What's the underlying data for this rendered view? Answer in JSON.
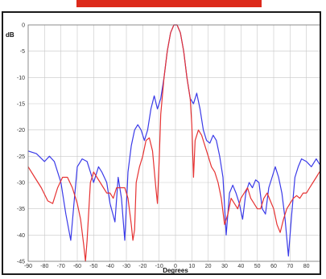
{
  "chart_data": {
    "type": "line",
    "title": "",
    "xlabel": "Degrees",
    "ylabel": "dB",
    "xlim": [
      -90,
      90
    ],
    "ylim": [
      -45,
      0
    ],
    "xticks": [
      -90,
      -80,
      -70,
      -60,
      -50,
      -40,
      -30,
      -20,
      -10,
      0,
      10,
      20,
      30,
      40,
      50,
      60,
      70,
      80,
      90
    ],
    "yticks": [
      0,
      -5,
      -10,
      -15,
      -20,
      -25,
      -30,
      -35,
      -40,
      -45
    ],
    "grid": true,
    "legend": "none",
    "series": [
      {
        "color": "#3a3ae8",
        "x": [
          -90,
          -85,
          -80,
          -77,
          -74,
          -70,
          -67,
          -64,
          -62,
          -60,
          -57,
          -54,
          -52,
          -50,
          -47,
          -45,
          -42,
          -40,
          -37,
          -35,
          -33,
          -31,
          -29,
          -27,
          -25,
          -23,
          -21,
          -19,
          -17,
          -15,
          -13,
          -11,
          -9,
          -7,
          -5,
          -3,
          -1,
          0,
          1,
          3,
          5,
          7,
          9,
          11,
          13,
          15,
          17,
          19,
          21,
          23,
          25,
          27,
          29,
          31,
          33,
          35,
          37,
          39,
          41,
          43,
          45,
          47,
          49,
          51,
          53,
          55,
          57,
          59,
          61,
          63,
          65,
          67,
          69,
          71,
          73,
          75,
          77,
          80,
          83,
          86,
          88,
          90
        ],
        "y": [
          -24,
          -24.5,
          -26,
          -25,
          -26,
          -30,
          -36,
          -41,
          -34,
          -27,
          -25.5,
          -26,
          -28,
          -30,
          -27,
          -28,
          -30,
          -34,
          -37.5,
          -29,
          -33,
          -41,
          -28,
          -23,
          -20,
          -19,
          -20,
          -22,
          -20,
          -16,
          -13.5,
          -16,
          -14,
          -10,
          -5,
          -1.5,
          0,
          0,
          0,
          -1.5,
          -5,
          -10,
          -14,
          -15,
          -13,
          -16,
          -20,
          -22,
          -22.5,
          -21,
          -22,
          -25,
          -29,
          -40,
          -32,
          -30.5,
          -32,
          -34,
          -37,
          -32,
          -30,
          -31,
          -29.5,
          -30,
          -35,
          -36,
          -31,
          -29,
          -27,
          -29,
          -32,
          -37,
          -44,
          -36,
          -29,
          -27,
          -25.5,
          -26,
          -27,
          -25.5,
          -26.5,
          -26.5
        ]
      },
      {
        "color": "#e63232",
        "x": [
          -90,
          -86,
          -82,
          -78,
          -75,
          -72,
          -69,
          -66,
          -63,
          -60,
          -58,
          -56,
          -55,
          -54,
          -52,
          -50,
          -48,
          -46,
          -44,
          -42,
          -40,
          -38,
          -36,
          -33,
          -31,
          -29,
          -27,
          -26,
          -25,
          -24,
          -22,
          -20,
          -18,
          -16,
          -14,
          -12,
          -11,
          -10,
          -9,
          -7,
          -5,
          -3,
          -1,
          0,
          1,
          3,
          5,
          7,
          9,
          10,
          11,
          12,
          14,
          16,
          18,
          20,
          22,
          24,
          26,
          28,
          30,
          32,
          34,
          36,
          38,
          40,
          42,
          44,
          46,
          48,
          50,
          52,
          54,
          56,
          58,
          60,
          62,
          64,
          66,
          68,
          70,
          72,
          74,
          76,
          78,
          80,
          82,
          84,
          86,
          88,
          90
        ],
        "y": [
          -27,
          -29,
          -31,
          -33.5,
          -34,
          -31,
          -29,
          -29,
          -31,
          -34,
          -37,
          -42,
          -45,
          -41,
          -30,
          -28,
          -29,
          -30,
          -31,
          -32,
          -32,
          -33,
          -31,
          -31,
          -31,
          -33,
          -38,
          -41,
          -39,
          -30,
          -27,
          -25,
          -22,
          -21.5,
          -24,
          -31,
          -34,
          -26,
          -17,
          -10,
          -5,
          -1.5,
          0,
          0,
          0,
          -1.5,
          -5,
          -10,
          -14,
          -19,
          -29,
          -22,
          -20,
          -21,
          -23,
          -25,
          -27,
          -28,
          -30,
          -33,
          -38,
          -36,
          -33,
          -34,
          -35,
          -33,
          -32,
          -31,
          -33,
          -34,
          -35,
          -35,
          -33,
          -32,
          -33.5,
          -35,
          -38,
          -39.5,
          -37,
          -35,
          -34,
          -33,
          -32.5,
          -33,
          -32,
          -32,
          -31,
          -30,
          -29,
          -28,
          -27.5
        ]
      }
    ]
  }
}
